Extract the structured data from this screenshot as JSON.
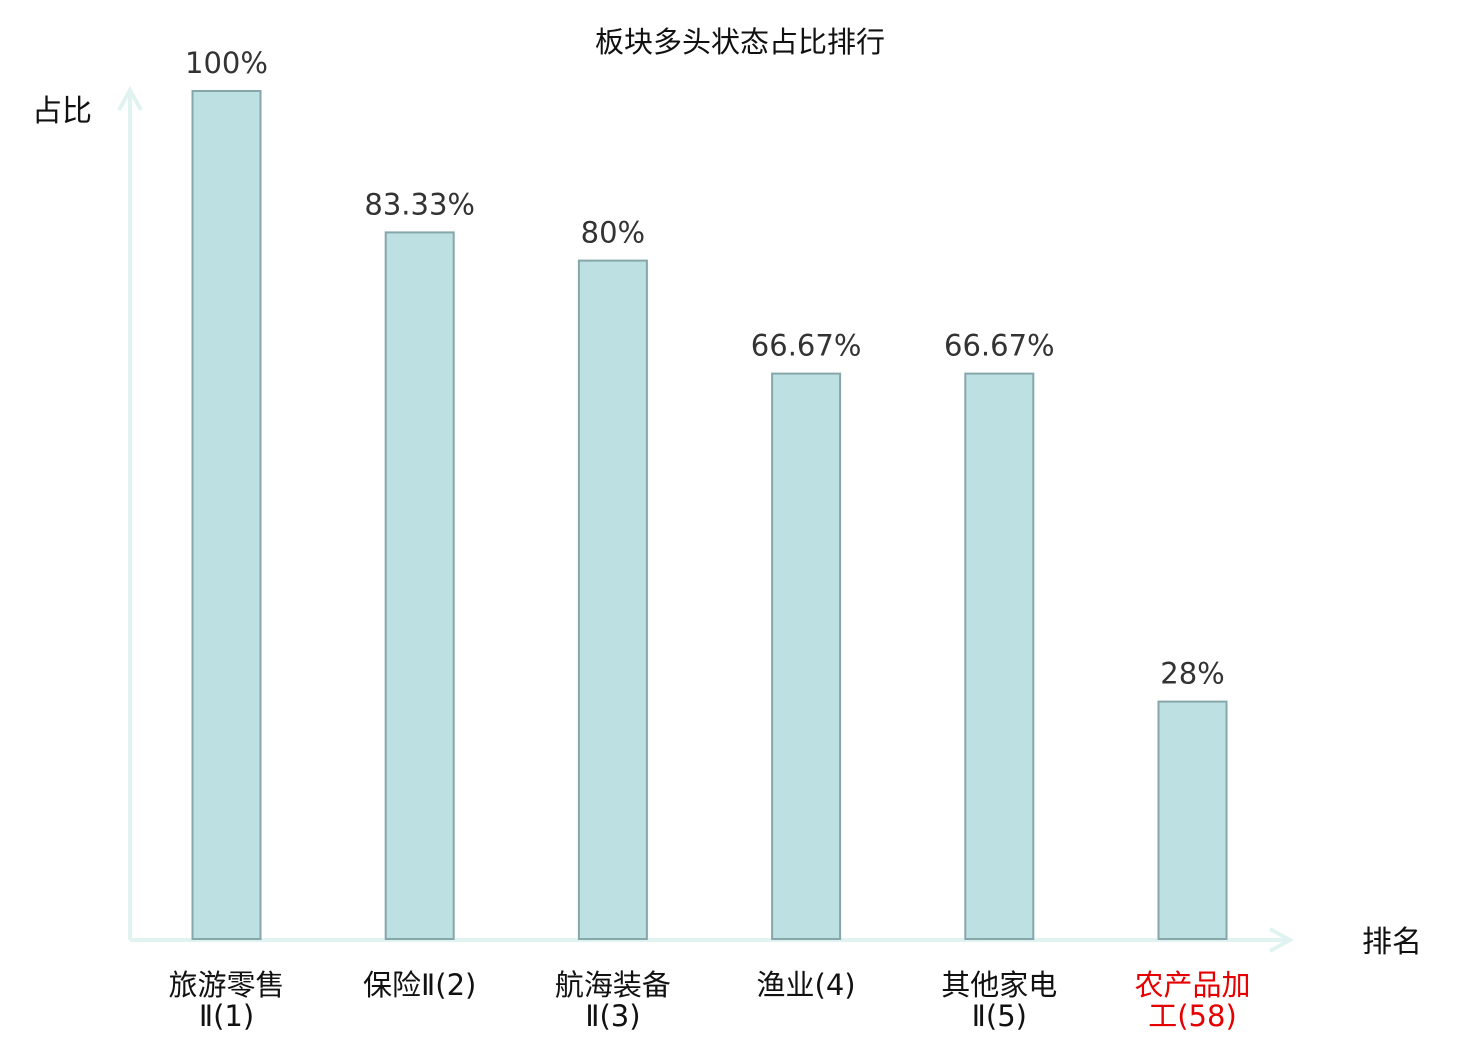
{
  "chart_data": {
    "type": "bar",
    "title": "板块多头状态占比排行",
    "xlabel": "排名",
    "ylabel": "占比",
    "ylim": [
      0,
      100
    ],
    "grid": false,
    "categories": [
      [
        "旅游零售",
        "Ⅱ(1)"
      ],
      [
        "保险Ⅱ(2)"
      ],
      [
        "航海装备",
        "Ⅱ(3)"
      ],
      [
        "渔业(4)"
      ],
      [
        "其他家电",
        "Ⅱ(5)"
      ],
      [
        "农产品加",
        "工(58)"
      ]
    ],
    "values": [
      100,
      83.33,
      80,
      66.67,
      66.67,
      28
    ],
    "value_labels": [
      "100%",
      "83.33%",
      "80%",
      "66.67%",
      "66.67%",
      "28%"
    ],
    "highlight_index": 5,
    "colors": {
      "bar_fill": "#bde0e3",
      "bar_stroke": "#86a7aa",
      "axis": "#e1f3f1",
      "label_default": "#111111",
      "label_highlight": "#e60000"
    }
  }
}
